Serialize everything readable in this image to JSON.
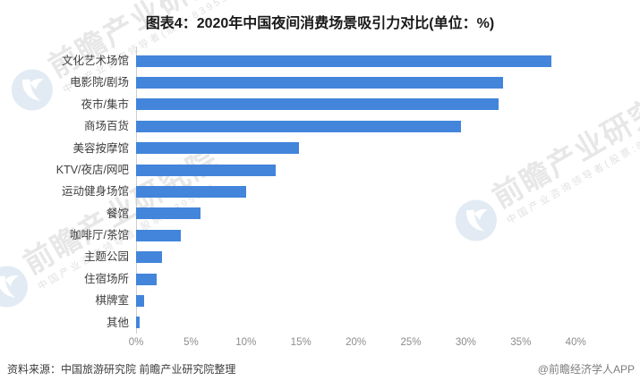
{
  "title": "图表4：2020年中国夜间消费场景吸引力对比(单位：%)",
  "chart_data": {
    "type": "bar",
    "orientation": "horizontal",
    "title": "图表4：2020年中国夜间消费场景吸引力对比(单位：%)",
    "categories": [
      "文化艺术场馆",
      "电影院/剧场",
      "夜市/集市",
      "商场百货",
      "美容按摩馆",
      "KTV/夜店/网吧",
      "运动健身场馆",
      "餐馆",
      "咖啡厅/茶馆",
      "主题公园",
      "住宿场所",
      "棋牌室",
      "其他"
    ],
    "values": [
      37.8,
      33.4,
      33.0,
      29.6,
      14.8,
      12.7,
      10.0,
      5.9,
      4.1,
      2.4,
      1.9,
      0.7,
      0.3
    ],
    "unit": "%",
    "xlabel": "",
    "ylabel": "",
    "xlim": [
      0,
      40
    ],
    "x_ticks": [
      "0%",
      "5%",
      "10%",
      "15%",
      "20%",
      "25%",
      "30%",
      "35%",
      "40%"
    ],
    "grid": false,
    "legend": null,
    "bar_color": "#4285DB"
  },
  "footer": {
    "source": "资料来源：中国旅游研究院 前瞻产业研究院整理",
    "brand": "@前瞻经济学人APP"
  },
  "watermark": {
    "big_text": "前瞻产业研究院",
    "small_text": "中国产业咨询领导者(股票:839599)",
    "logo": "qianzhan-bird-logo",
    "logo_color": "#dde8f2"
  }
}
